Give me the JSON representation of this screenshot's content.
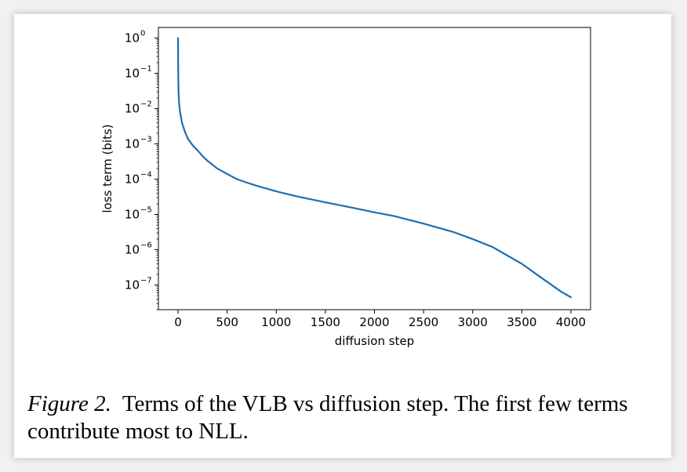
{
  "caption": {
    "label": "Figure 2.",
    "text": "Terms of the VLB vs diffusion step. The first few terms contribute most to NLL."
  },
  "chart_data": {
    "type": "line",
    "title": "",
    "xlabel": "diffusion step",
    "ylabel": "loss term (bits)",
    "xlim": [
      -200,
      4200
    ],
    "ylim_log10": [
      -7.7,
      0.3
    ],
    "yscale": "log",
    "grid": false,
    "x_ticks": [
      0,
      500,
      1000,
      1500,
      2000,
      2500,
      3000,
      3500,
      4000
    ],
    "y_tick_exponents": [
      0,
      -1,
      -2,
      -3,
      -4,
      -5,
      -6,
      -7
    ],
    "series": [
      {
        "color": "#1f6eb0",
        "x": [
          0,
          1,
          2,
          5,
          10,
          20,
          40,
          70,
          100,
          150,
          200,
          250,
          300,
          400,
          500,
          600,
          700,
          800,
          1000,
          1200,
          1500,
          1800,
          2000,
          2200,
          2500,
          2800,
          3000,
          3200,
          3500,
          3700,
          3900,
          4000
        ],
        "y": [
          1.0,
          0.2,
          0.08,
          0.03,
          0.015,
          0.008,
          0.004,
          0.0022,
          0.0014,
          0.0009,
          0.00065,
          0.00045,
          0.00033,
          0.0002,
          0.00014,
          0.0001,
          8e-05,
          6.5e-05,
          4.5e-05,
          3.3e-05,
          2.2e-05,
          1.5e-05,
          1.15e-05,
          9e-06,
          5.5e-06,
          3.2e-06,
          2e-06,
          1.2e-06,
          4e-07,
          1.6e-07,
          6.5e-08,
          4.5e-08
        ]
      }
    ]
  }
}
